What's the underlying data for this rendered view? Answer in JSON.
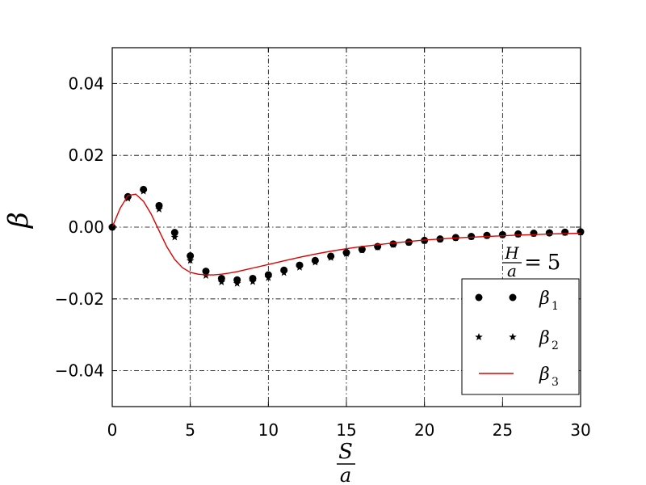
{
  "chart_data": {
    "type": "scatter",
    "xlim": [
      0,
      30
    ],
    "ylim": [
      -0.05,
      0.05
    ],
    "x_ticks": [
      0,
      5,
      10,
      15,
      20,
      25,
      30
    ],
    "y_ticks": [
      -0.04,
      -0.02,
      0.0,
      0.02,
      0.04
    ],
    "x_tick_labels": [
      "0",
      "5",
      "10",
      "15",
      "20",
      "25",
      "30"
    ],
    "y_tick_labels": [
      "−0.04",
      "−0.02",
      "0.00",
      "0.02",
      "0.04"
    ],
    "grid": true,
    "grid_style": "dash-dot",
    "legend_position": "lower-right",
    "xlabel": {
      "numerator": "S",
      "denominator": "a"
    },
    "ylabel": "β",
    "annotation": {
      "numerator": "H",
      "denominator": "a",
      "equals": "=",
      "value": "5"
    },
    "series": [
      {
        "name": "β",
        "subscript": "1",
        "marker": "circle",
        "color": "#000000",
        "x": [
          0,
          1,
          2,
          3,
          4,
          5,
          6,
          7,
          8,
          9,
          10,
          11,
          12,
          13,
          14,
          15,
          16,
          17,
          18,
          19,
          20,
          21,
          22,
          23,
          24,
          25,
          26,
          27,
          28,
          29,
          30
        ],
        "y": [
          0.0,
          0.0085,
          0.0105,
          0.006,
          -0.0015,
          -0.008,
          -0.0123,
          -0.0143,
          -0.0147,
          -0.0143,
          -0.0133,
          -0.012,
          -0.0106,
          -0.0093,
          -0.0081,
          -0.0071,
          -0.0062,
          -0.0054,
          -0.0047,
          -0.0042,
          -0.0037,
          -0.0033,
          -0.0029,
          -0.0026,
          -0.0023,
          -0.0021,
          -0.0019,
          -0.0017,
          -0.0016,
          -0.0014,
          -0.0013
        ]
      },
      {
        "name": "β",
        "subscript": "2",
        "marker": "star",
        "color": "#000000",
        "x": [
          0,
          1,
          2,
          3,
          4,
          5,
          6,
          7,
          8,
          9,
          10,
          11,
          12,
          13,
          14,
          15,
          16,
          17,
          18,
          19,
          20,
          21,
          22,
          23,
          24,
          25,
          26,
          27,
          28,
          29,
          30
        ],
        "y": [
          0.0,
          0.008,
          0.01,
          0.005,
          -0.0028,
          -0.0093,
          -0.0135,
          -0.0153,
          -0.0157,
          -0.0152,
          -0.0141,
          -0.0127,
          -0.0112,
          -0.0098,
          -0.0085,
          -0.0074,
          -0.0064,
          -0.0056,
          -0.0049,
          -0.0043,
          -0.0038,
          -0.0034,
          -0.003,
          -0.0027,
          -0.0024,
          -0.0022,
          -0.002,
          -0.0018,
          -0.0016,
          -0.0015,
          -0.0014
        ]
      },
      {
        "name": "β",
        "subscript": "3",
        "marker": "line",
        "color": "#dd0000",
        "x": [
          0,
          0.5,
          1,
          1.5,
          2,
          2.5,
          3,
          3.5,
          4,
          4.5,
          5,
          5.5,
          6,
          6.5,
          7,
          7.5,
          8,
          8.5,
          9,
          10,
          11,
          12,
          13,
          14,
          15,
          16,
          17,
          18,
          19,
          20,
          21,
          22,
          23,
          24,
          25,
          26,
          27,
          28,
          29,
          30
        ],
        "y": [
          0.0,
          0.0052,
          0.0088,
          0.0092,
          0.0072,
          0.0036,
          -0.001,
          -0.0055,
          -0.009,
          -0.0113,
          -0.0126,
          -0.0131,
          -0.0133,
          -0.0133,
          -0.0131,
          -0.0128,
          -0.0124,
          -0.0119,
          -0.0114,
          -0.0104,
          -0.0094,
          -0.0084,
          -0.0075,
          -0.0067,
          -0.006,
          -0.0054,
          -0.0049,
          -0.0044,
          -0.004,
          -0.0036,
          -0.0033,
          -0.003,
          -0.0028,
          -0.0026,
          -0.0024,
          -0.0022,
          -0.0021,
          -0.0019,
          -0.0018,
          -0.0017
        ]
      }
    ]
  }
}
